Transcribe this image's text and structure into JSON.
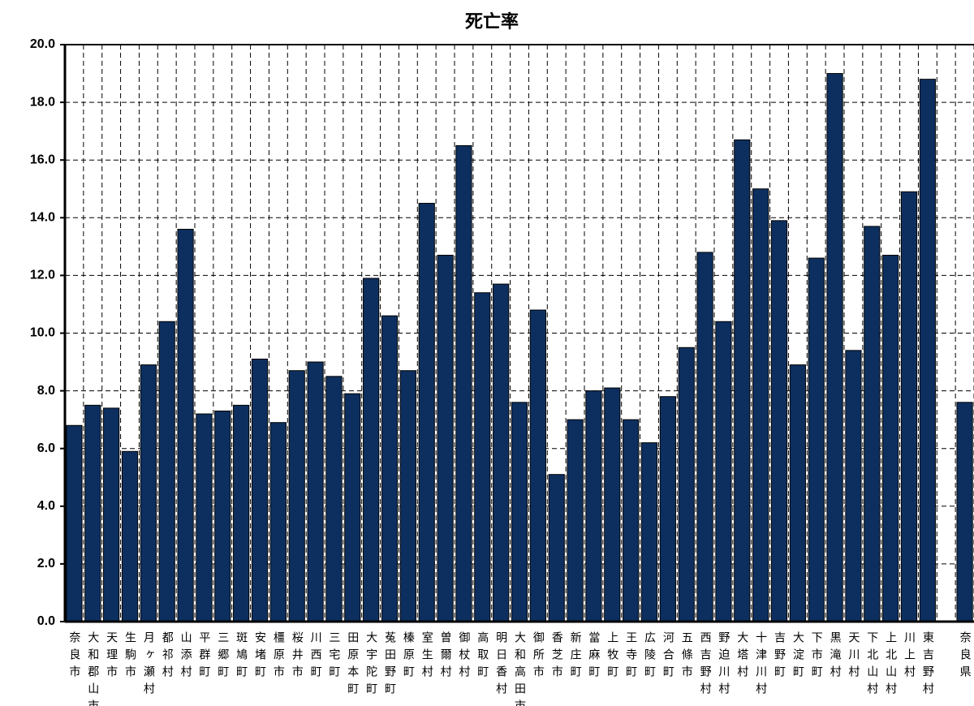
{
  "chart_data": {
    "type": "bar",
    "title": "死亡率",
    "categories": [
      "奈良市",
      "大和郡山市",
      "天理市",
      "生駒市",
      "月ヶ瀬村",
      "都祁村",
      "山添村",
      "平群町",
      "三郷町",
      "斑鳩町",
      "安堵町",
      "橿原市",
      "桜井市",
      "川西町",
      "三宅町",
      "田原本町",
      "大宇陀町",
      "菟田野町",
      "榛原町",
      "室生村",
      "曽爾村",
      "御杖村",
      "高取町",
      "明日香村",
      "大和高田市",
      "御所市",
      "香芝市",
      "新庄町",
      "當麻町",
      "上牧町",
      "王寺町",
      "広陵町",
      "河合町",
      "五條市",
      "西吉野村",
      "野迫川村",
      "大塔村",
      "十津川村",
      "吉野町",
      "大淀町",
      "下市町",
      "黒滝村",
      "天川村",
      "下北山村",
      "上北山村",
      "川上村",
      "東吉野村",
      null,
      "奈良県"
    ],
    "values": [
      6.8,
      7.5,
      7.4,
      5.9,
      8.9,
      10.4,
      13.6,
      7.2,
      7.3,
      7.5,
      9.1,
      6.9,
      8.7,
      9.0,
      8.5,
      7.9,
      11.9,
      10.6,
      8.7,
      14.5,
      12.7,
      16.5,
      11.4,
      11.7,
      7.6,
      10.8,
      5.1,
      7.0,
      8.0,
      8.1,
      7.0,
      6.2,
      7.8,
      9.5,
      12.8,
      10.4,
      16.7,
      15.0,
      13.9,
      8.9,
      12.6,
      19.0,
      9.4,
      13.7,
      12.7,
      14.9,
      18.8,
      null,
      7.6
    ],
    "color": "#0d2f5f",
    "ylim": [
      0,
      20
    ],
    "yticks": [
      {
        "value": 0,
        "label": "0.0"
      },
      {
        "value": 2,
        "label": "2.0"
      },
      {
        "value": 4,
        "label": "4.0"
      },
      {
        "value": 6,
        "label": "6.0"
      },
      {
        "value": 8,
        "label": "8.0"
      },
      {
        "value": 10,
        "label": "10.0"
      },
      {
        "value": 12,
        "label": "12.0"
      },
      {
        "value": 14,
        "label": "14.0"
      },
      {
        "value": 16,
        "label": "16.0"
      },
      {
        "value": 18,
        "label": "18.0"
      },
      {
        "value": 20,
        "label": "20.0"
      }
    ],
    "grid": true
  }
}
